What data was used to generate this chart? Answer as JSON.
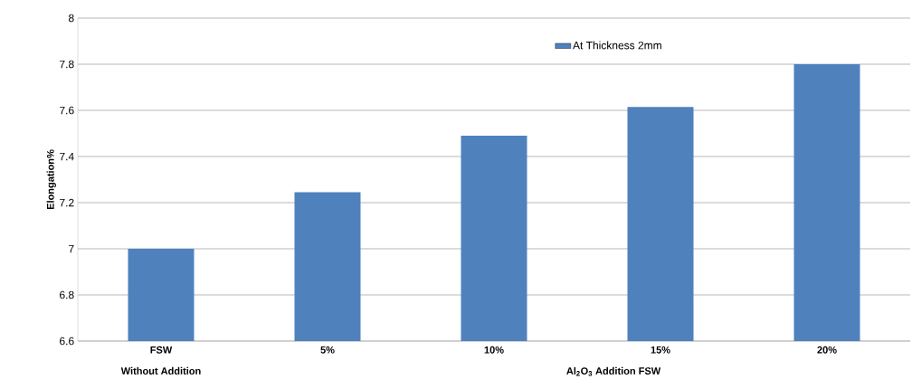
{
  "chart_data": {
    "type": "bar",
    "xlabel": "Al$_{2}$O$_{3}$ Addition FSW",
    "ylabel": "Elongation%",
    "categories": [
      "FSW",
      "5%",
      "10%",
      "15%",
      "20%"
    ],
    "series": [
      {
        "name": "At Thickness 2mm",
        "color": "#4f81bd",
        "values": [
          7.0,
          7.245,
          7.49,
          7.615,
          7.8
        ]
      }
    ],
    "ylim": [
      6.6,
      8
    ],
    "yticks": [
      6.6,
      6.8,
      7,
      7.2,
      7.4,
      7.6,
      7.8,
      8
    ],
    "grid": "y",
    "legend": "top right",
    "annotations": [
      "Without Addition"
    ]
  }
}
